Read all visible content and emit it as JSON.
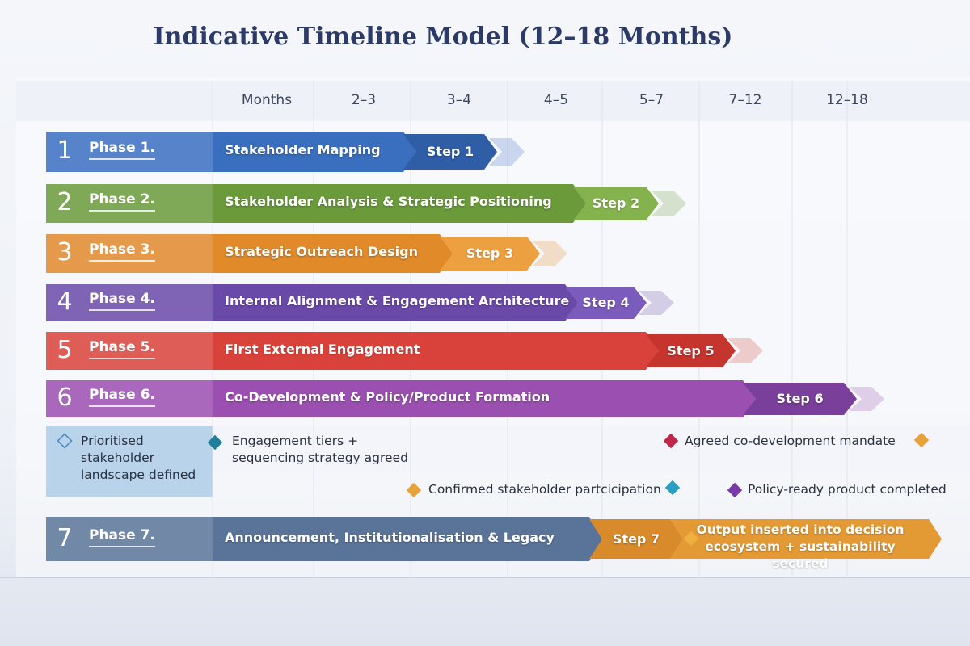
{
  "title": "Indicative Timeline Model (12–18 Months)",
  "columns": [
    "Months",
    "2–3",
    "3–4",
    "4–5",
    "5–7",
    "7–12",
    "12–18"
  ],
  "phases": [
    {
      "number": "1",
      "label": "Phase 1.",
      "task": "Stakeholder Mapping",
      "step": "Step 1"
    },
    {
      "number": "2",
      "label": "Phase 2.",
      "task": "Stakeholder Analysis & Strategic Positioning",
      "step": "Step 2"
    },
    {
      "number": "3",
      "label": "Phase 3.",
      "task": "Strategic Outreach Design",
      "step": "Step 3"
    },
    {
      "number": "4",
      "label": "Phase 4.",
      "task": "Internal Alignment & Engagement Architecture",
      "step": "Step 4"
    },
    {
      "number": "5",
      "label": "Phase 5.",
      "task": "First External Engagement",
      "step": "Step 5"
    },
    {
      "number": "6",
      "label": "Phase 6.",
      "task": "Co-Development & Policy/Product Formation",
      "step": "Step 6"
    },
    {
      "number": "7",
      "label": "Phase 7.",
      "task": "Announcement, Institutionalisation & Legacy",
      "step": "Step 7",
      "output": "Output inserted into decision ecosystem + sustainability secured"
    }
  ],
  "milestones": [
    "Prioritised stakeholder landscape defined",
    "Engagement tiers + sequencing strategy agreed",
    "Agreed co-development mandate",
    "Confirmed stakeholder partcicipation",
    "Policy-ready product completed"
  ]
}
